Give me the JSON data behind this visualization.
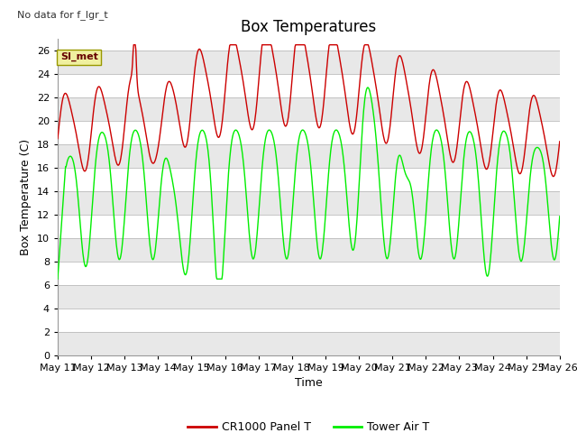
{
  "title": "Box Temperatures",
  "xlabel": "Time",
  "ylabel": "Box Temperature (C)",
  "no_data_text": "No data for f_lgr_t",
  "station_label": "SI_met",
  "ylim": [
    0,
    27
  ],
  "yticks": [
    0,
    2,
    4,
    6,
    8,
    10,
    12,
    14,
    16,
    18,
    20,
    22,
    24,
    26
  ],
  "x_tick_labels": [
    "May 11",
    "May 12",
    "May 13",
    "May 14",
    "May 15",
    "May 16",
    "May 17",
    "May 18",
    "May 19",
    "May 20",
    "May 21",
    "May 22",
    "May 23",
    "May 24",
    "May 25",
    "May 26"
  ],
  "red_label": "CR1000 Panel T",
  "green_label": "Tower Air T",
  "red_color": "#cc0000",
  "green_color": "#00ee00",
  "bg_color": "#ffffff",
  "band_light": "#e8e8e8",
  "band_dark": "#d0d0d0",
  "grid_color": "#cccccc",
  "title_fontsize": 12,
  "axis_fontsize": 9,
  "tick_fontsize": 8,
  "legend_fontsize": 9
}
